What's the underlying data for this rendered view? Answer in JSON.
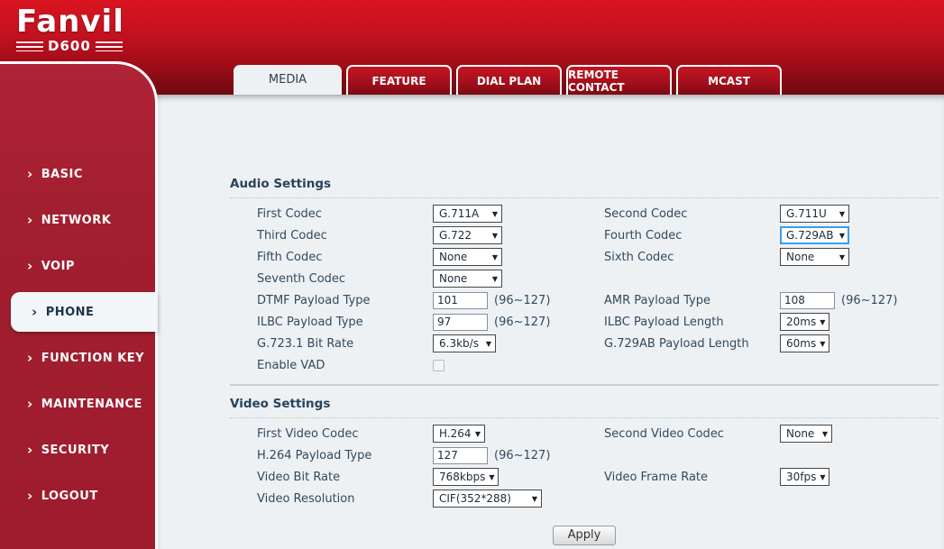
{
  "brand": {
    "logo": "Fanvil",
    "model": "D600"
  },
  "icons": {
    "chevron_right": "›",
    "dropdown_arrow": "▼"
  },
  "colors": {
    "header_red_top": "#d91420",
    "header_red_bottom": "#6e090f",
    "sidebar_red": "#a21f30",
    "focus_blue": "#3d9be9",
    "content_bg": "#edf1f4"
  },
  "sidebar": {
    "items": [
      {
        "label": "BASIC",
        "active": false
      },
      {
        "label": "NETWORK",
        "active": false
      },
      {
        "label": "VOIP",
        "active": false
      },
      {
        "label": "PHONE",
        "active": true
      },
      {
        "label": "FUNCTION KEY",
        "active": false
      },
      {
        "label": "MAINTENANCE",
        "active": false
      },
      {
        "label": "SECURITY",
        "active": false
      },
      {
        "label": "LOGOUT",
        "active": false
      }
    ]
  },
  "tabs": [
    {
      "label": "MEDIA",
      "active": true
    },
    {
      "label": "FEATURE",
      "active": false
    },
    {
      "label": "DIAL PLAN",
      "active": false
    },
    {
      "label": "REMOTE CONTACT",
      "active": false
    },
    {
      "label": "MCAST",
      "active": false
    }
  ],
  "audio": {
    "title": "Audio Settings",
    "rows": [
      {
        "left": {
          "label": "First Codec",
          "type": "select",
          "value": "G.711A"
        },
        "right": {
          "label": "Second Codec",
          "type": "select",
          "value": "G.711U"
        }
      },
      {
        "left": {
          "label": "Third Codec",
          "type": "select",
          "value": "G.722"
        },
        "right": {
          "label": "Fourth Codec",
          "type": "select",
          "value": "G.729AB",
          "focused": true
        }
      },
      {
        "left": {
          "label": "Fifth Codec",
          "type": "select",
          "value": "None"
        },
        "right": {
          "label": "Sixth Codec",
          "type": "select",
          "value": "None"
        }
      },
      {
        "left": {
          "label": "Seventh Codec",
          "type": "select",
          "value": "None"
        }
      },
      {
        "left": {
          "label": "DTMF Payload Type",
          "type": "input",
          "value": "101",
          "hint": "(96~127)"
        },
        "right": {
          "label": "AMR Payload Type",
          "type": "input",
          "value": "108",
          "hint": "(96~127)"
        }
      },
      {
        "left": {
          "label": "ILBC Payload Type",
          "type": "input",
          "value": "97",
          "hint": "(96~127)"
        },
        "right": {
          "label": "ILBC Payload Length",
          "type": "select",
          "value": "20ms"
        }
      },
      {
        "left": {
          "label": "G.723.1 Bit Rate",
          "type": "select",
          "value": "6.3kb/s"
        },
        "right": {
          "label": "G.729AB Payload Length",
          "type": "select",
          "value": "60ms"
        }
      },
      {
        "left": {
          "label": "Enable VAD",
          "type": "checkbox",
          "checked": false
        }
      }
    ]
  },
  "video": {
    "title": "Video Settings",
    "rows": [
      {
        "left": {
          "label": "First Video Codec",
          "type": "select",
          "value": "H.264"
        },
        "right": {
          "label": "Second Video Codec",
          "type": "select",
          "value": "None"
        }
      },
      {
        "left": {
          "label": "H.264 Payload Type",
          "type": "input",
          "value": "127",
          "hint": "(96~127)"
        }
      },
      {
        "left": {
          "label": "Video Bit Rate",
          "type": "select",
          "value": "768kbps"
        },
        "right": {
          "label": "Video Frame Rate",
          "type": "select",
          "value": "30fps"
        }
      },
      {
        "left": {
          "label": "Video Resolution",
          "type": "select",
          "value": "CIF(352*288)"
        }
      }
    ]
  },
  "apply_label": "Apply"
}
